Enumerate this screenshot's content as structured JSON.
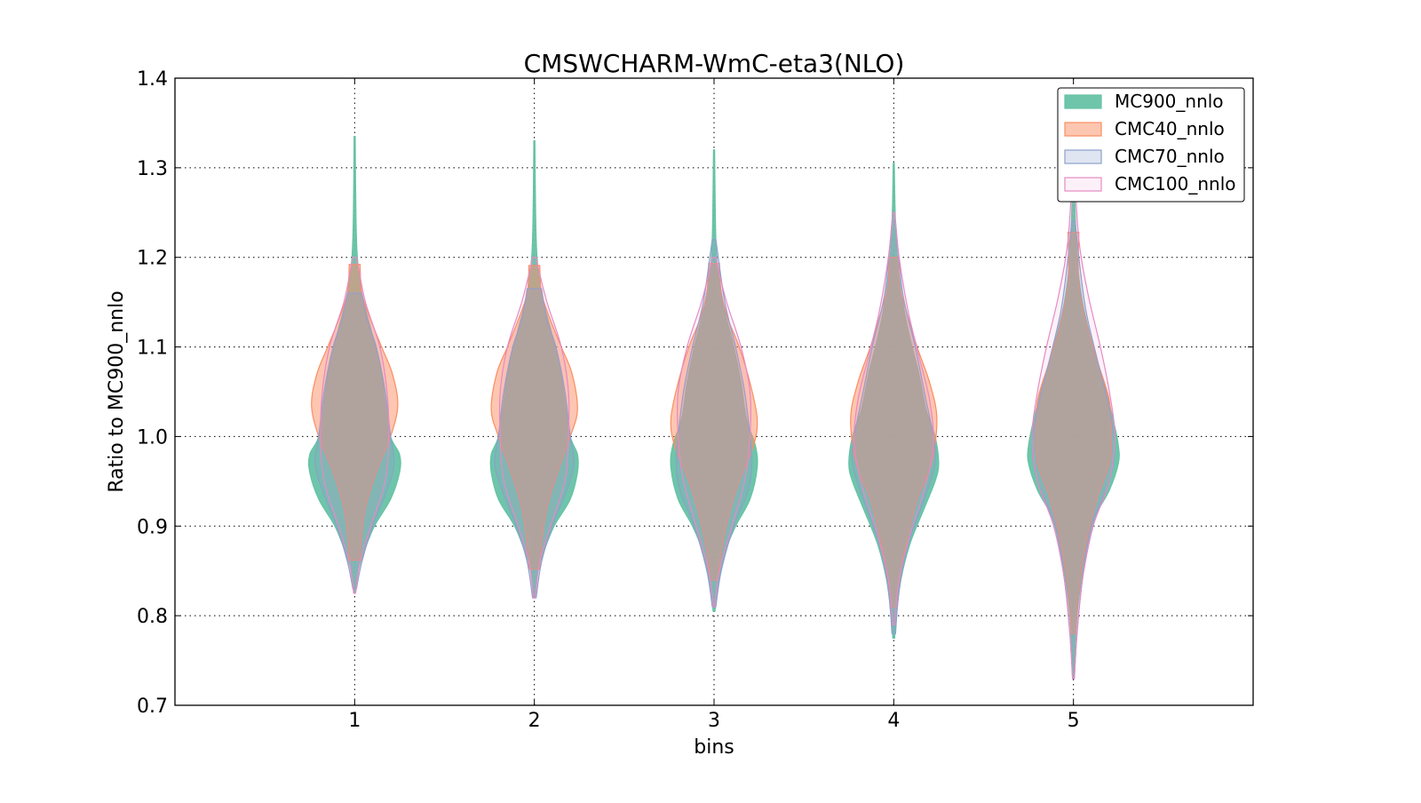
{
  "chart_data": {
    "type": "violin",
    "title": "CMSWCHARM-WmC-eta3(NLO)",
    "xlabel": "bins",
    "ylabel": "Ratio to MC900_nnlo",
    "xlim": [
      0,
      6
    ],
    "ylim": [
      0.7,
      1.4
    ],
    "xticks": [
      "1",
      "2",
      "3",
      "4",
      "5"
    ],
    "yticks": [
      "0.7",
      "0.8",
      "0.9",
      "1.0",
      "1.1",
      "1.2",
      "1.3",
      "1.4"
    ],
    "grid": true,
    "legend_position": "top-right",
    "profile_note": "each profile point is [ratio value, half-width in bin units]",
    "series": [
      {
        "name": "MC900_nnlo",
        "color": "#66c2a5",
        "fill_opacity": 0.95,
        "violins": [
          [
            [
              0.825,
              0.005
            ],
            [
              0.85,
              0.02
            ],
            [
              0.87,
              0.05
            ],
            [
              0.9,
              0.11
            ],
            [
              0.93,
              0.2
            ],
            [
              0.96,
              0.25
            ],
            [
              0.98,
              0.25
            ],
            [
              1.0,
              0.2
            ],
            [
              1.04,
              0.17
            ],
            [
              1.08,
              0.14
            ],
            [
              1.12,
              0.09
            ],
            [
              1.16,
              0.04
            ],
            [
              1.2,
              0.015
            ],
            [
              1.25,
              0.007
            ],
            [
              1.335,
              0.003
            ]
          ],
          [
            [
              0.82,
              0.005
            ],
            [
              0.85,
              0.02
            ],
            [
              0.87,
              0.05
            ],
            [
              0.9,
              0.11
            ],
            [
              0.93,
              0.2
            ],
            [
              0.96,
              0.24
            ],
            [
              0.98,
              0.24
            ],
            [
              1.0,
              0.2
            ],
            [
              1.04,
              0.17
            ],
            [
              1.08,
              0.14
            ],
            [
              1.12,
              0.09
            ],
            [
              1.16,
              0.04
            ],
            [
              1.2,
              0.015
            ],
            [
              1.25,
              0.007
            ],
            [
              1.33,
              0.003
            ]
          ],
          [
            [
              0.805,
              0.005
            ],
            [
              0.83,
              0.02
            ],
            [
              0.87,
              0.06
            ],
            [
              0.9,
              0.12
            ],
            [
              0.93,
              0.2
            ],
            [
              0.965,
              0.24
            ],
            [
              0.99,
              0.23
            ],
            [
              1.02,
              0.18
            ],
            [
              1.06,
              0.15
            ],
            [
              1.1,
              0.11
            ],
            [
              1.14,
              0.06
            ],
            [
              1.18,
              0.025
            ],
            [
              1.22,
              0.01
            ],
            [
              1.32,
              0.003
            ]
          ],
          [
            [
              0.775,
              0.005
            ],
            [
              0.8,
              0.015
            ],
            [
              0.84,
              0.04
            ],
            [
              0.88,
              0.09
            ],
            [
              0.92,
              0.17
            ],
            [
              0.95,
              0.23
            ],
            [
              0.97,
              0.25
            ],
            [
              1.0,
              0.23
            ],
            [
              1.03,
              0.18
            ],
            [
              1.07,
              0.14
            ],
            [
              1.11,
              0.09
            ],
            [
              1.15,
              0.05
            ],
            [
              1.2,
              0.02
            ],
            [
              1.25,
              0.008
            ],
            [
              1.305,
              0.003
            ]
          ],
          [
            [
              0.73,
              0.005
            ],
            [
              0.77,
              0.01
            ],
            [
              0.82,
              0.03
            ],
            [
              0.87,
              0.07
            ],
            [
              0.91,
              0.12
            ],
            [
              0.94,
              0.2
            ],
            [
              0.97,
              0.25
            ],
            [
              0.99,
              0.25
            ],
            [
              1.02,
              0.22
            ],
            [
              1.06,
              0.17
            ],
            [
              1.1,
              0.11
            ],
            [
              1.15,
              0.05
            ],
            [
              1.2,
              0.02
            ],
            [
              1.28,
              0.005
            ]
          ]
        ]
      },
      {
        "name": "CMC40_nnlo",
        "color": "#fc8d62",
        "fill_opacity": 0.5,
        "violins": [
          [
            [
              0.862,
              0.03
            ],
            [
              0.88,
              0.035
            ],
            [
              0.92,
              0.06
            ],
            [
              0.96,
              0.12
            ],
            [
              1.0,
              0.2
            ],
            [
              1.035,
              0.24
            ],
            [
              1.07,
              0.21
            ],
            [
              1.1,
              0.15
            ],
            [
              1.13,
              0.09
            ],
            [
              1.16,
              0.04
            ],
            [
              1.192,
              0.03
            ]
          ],
          [
            [
              0.852,
              0.03
            ],
            [
              0.88,
              0.04
            ],
            [
              0.92,
              0.07
            ],
            [
              0.96,
              0.13
            ],
            [
              1.0,
              0.2
            ],
            [
              1.03,
              0.24
            ],
            [
              1.07,
              0.21
            ],
            [
              1.1,
              0.15
            ],
            [
              1.13,
              0.09
            ],
            [
              1.16,
              0.04
            ],
            [
              1.191,
              0.03
            ]
          ],
          [
            [
              0.84,
              0.02
            ],
            [
              0.87,
              0.04
            ],
            [
              0.91,
              0.08
            ],
            [
              0.95,
              0.14
            ],
            [
              0.99,
              0.22
            ],
            [
              1.02,
              0.24
            ],
            [
              1.06,
              0.2
            ],
            [
              1.1,
              0.14
            ],
            [
              1.13,
              0.08
            ],
            [
              1.16,
              0.04
            ],
            [
              1.193,
              0.03
            ]
          ],
          [
            [
              0.81,
              0.02
            ],
            [
              0.85,
              0.04
            ],
            [
              0.89,
              0.08
            ],
            [
              0.93,
              0.13
            ],
            [
              0.97,
              0.21
            ],
            [
              1.02,
              0.24
            ],
            [
              1.06,
              0.2
            ],
            [
              1.1,
              0.13
            ],
            [
              1.14,
              0.07
            ],
            [
              1.17,
              0.03
            ],
            [
              1.2,
              0.03
            ]
          ],
          [
            [
              0.78,
              0.01
            ],
            [
              0.83,
              0.03
            ],
            [
              0.88,
              0.07
            ],
            [
              0.93,
              0.13
            ],
            [
              0.97,
              0.2
            ],
            [
              1.0,
              0.21
            ],
            [
              1.04,
              0.2
            ],
            [
              1.08,
              0.14
            ],
            [
              1.12,
              0.08
            ],
            [
              1.17,
              0.03
            ],
            [
              1.228,
              0.03
            ]
          ]
        ]
      },
      {
        "name": "CMC70_nnlo",
        "color": "#8da0cb",
        "fill_opacity": 0.28,
        "violins": [
          [
            [
              0.83,
              0.01
            ],
            [
              0.86,
              0.04
            ],
            [
              0.9,
              0.1
            ],
            [
              0.94,
              0.18
            ],
            [
              0.97,
              0.22
            ],
            [
              1.0,
              0.2
            ],
            [
              1.05,
              0.17
            ],
            [
              1.1,
              0.12
            ],
            [
              1.13,
              0.07
            ],
            [
              1.16,
              0.04
            ]
          ],
          [
            [
              0.82,
              0.01
            ],
            [
              0.86,
              0.04
            ],
            [
              0.9,
              0.1
            ],
            [
              0.94,
              0.18
            ],
            [
              0.97,
              0.22
            ],
            [
              1.0,
              0.2
            ],
            [
              1.05,
              0.17
            ],
            [
              1.1,
              0.12
            ],
            [
              1.13,
              0.07
            ],
            [
              1.165,
              0.04
            ]
          ],
          [
            [
              0.81,
              0.01
            ],
            [
              0.85,
              0.04
            ],
            [
              0.9,
              0.11
            ],
            [
              0.94,
              0.19
            ],
            [
              0.97,
              0.21
            ],
            [
              1.0,
              0.2
            ],
            [
              1.05,
              0.17
            ],
            [
              1.1,
              0.12
            ],
            [
              1.15,
              0.06
            ],
            [
              1.22,
              0.01
            ]
          ],
          [
            [
              0.78,
              0.01
            ],
            [
              0.83,
              0.03
            ],
            [
              0.88,
              0.08
            ],
            [
              0.93,
              0.17
            ],
            [
              0.97,
              0.23
            ],
            [
              1.0,
              0.22
            ],
            [
              1.05,
              0.17
            ],
            [
              1.1,
              0.12
            ],
            [
              1.16,
              0.05
            ],
            [
              1.24,
              0.01
            ]
          ],
          [
            [
              0.73,
              0.005
            ],
            [
              0.78,
              0.02
            ],
            [
              0.84,
              0.05
            ],
            [
              0.9,
              0.1
            ],
            [
              0.95,
              0.2
            ],
            [
              0.99,
              0.23
            ],
            [
              1.03,
              0.2
            ],
            [
              1.08,
              0.14
            ],
            [
              1.14,
              0.07
            ],
            [
              1.2,
              0.03
            ],
            [
              1.24,
              0.01
            ]
          ]
        ]
      },
      {
        "name": "CMC100_nnlo",
        "color": "#e78ac3",
        "fill_opacity": 0.12,
        "violins": [
          [
            [
              0.825,
              0.005
            ],
            [
              0.86,
              0.03
            ],
            [
              0.9,
              0.09
            ],
            [
              0.95,
              0.17
            ],
            [
              1.0,
              0.19
            ],
            [
              1.05,
              0.18
            ],
            [
              1.1,
              0.14
            ],
            [
              1.15,
              0.06
            ],
            [
              1.19,
              0.02
            ],
            [
              1.2,
              0.01
            ]
          ],
          [
            [
              0.82,
              0.005
            ],
            [
              0.86,
              0.03
            ],
            [
              0.9,
              0.09
            ],
            [
              0.95,
              0.17
            ],
            [
              1.0,
              0.19
            ],
            [
              1.05,
              0.19
            ],
            [
              1.1,
              0.15
            ],
            [
              1.15,
              0.07
            ],
            [
              1.19,
              0.02
            ],
            [
              1.2,
              0.01
            ]
          ],
          [
            [
              0.81,
              0.005
            ],
            [
              0.85,
              0.03
            ],
            [
              0.9,
              0.1
            ],
            [
              0.95,
              0.17
            ],
            [
              1.0,
              0.2
            ],
            [
              1.05,
              0.2
            ],
            [
              1.1,
              0.15
            ],
            [
              1.15,
              0.07
            ],
            [
              1.19,
              0.02
            ],
            [
              1.2,
              0.01
            ]
          ],
          [
            [
              0.79,
              0.005
            ],
            [
              0.84,
              0.03
            ],
            [
              0.89,
              0.09
            ],
            [
              0.94,
              0.17
            ],
            [
              0.99,
              0.22
            ],
            [
              1.04,
              0.2
            ],
            [
              1.09,
              0.14
            ],
            [
              1.14,
              0.08
            ],
            [
              1.2,
              0.03
            ],
            [
              1.25,
              0.005
            ]
          ],
          [
            [
              0.73,
              0.005
            ],
            [
              0.78,
              0.02
            ],
            [
              0.84,
              0.05
            ],
            [
              0.9,
              0.11
            ],
            [
              0.95,
              0.2
            ],
            [
              1.0,
              0.23
            ],
            [
              1.05,
              0.2
            ],
            [
              1.1,
              0.15
            ],
            [
              1.16,
              0.08
            ],
            [
              1.22,
              0.03
            ],
            [
              1.3,
              0.005
            ]
          ]
        ]
      }
    ]
  }
}
